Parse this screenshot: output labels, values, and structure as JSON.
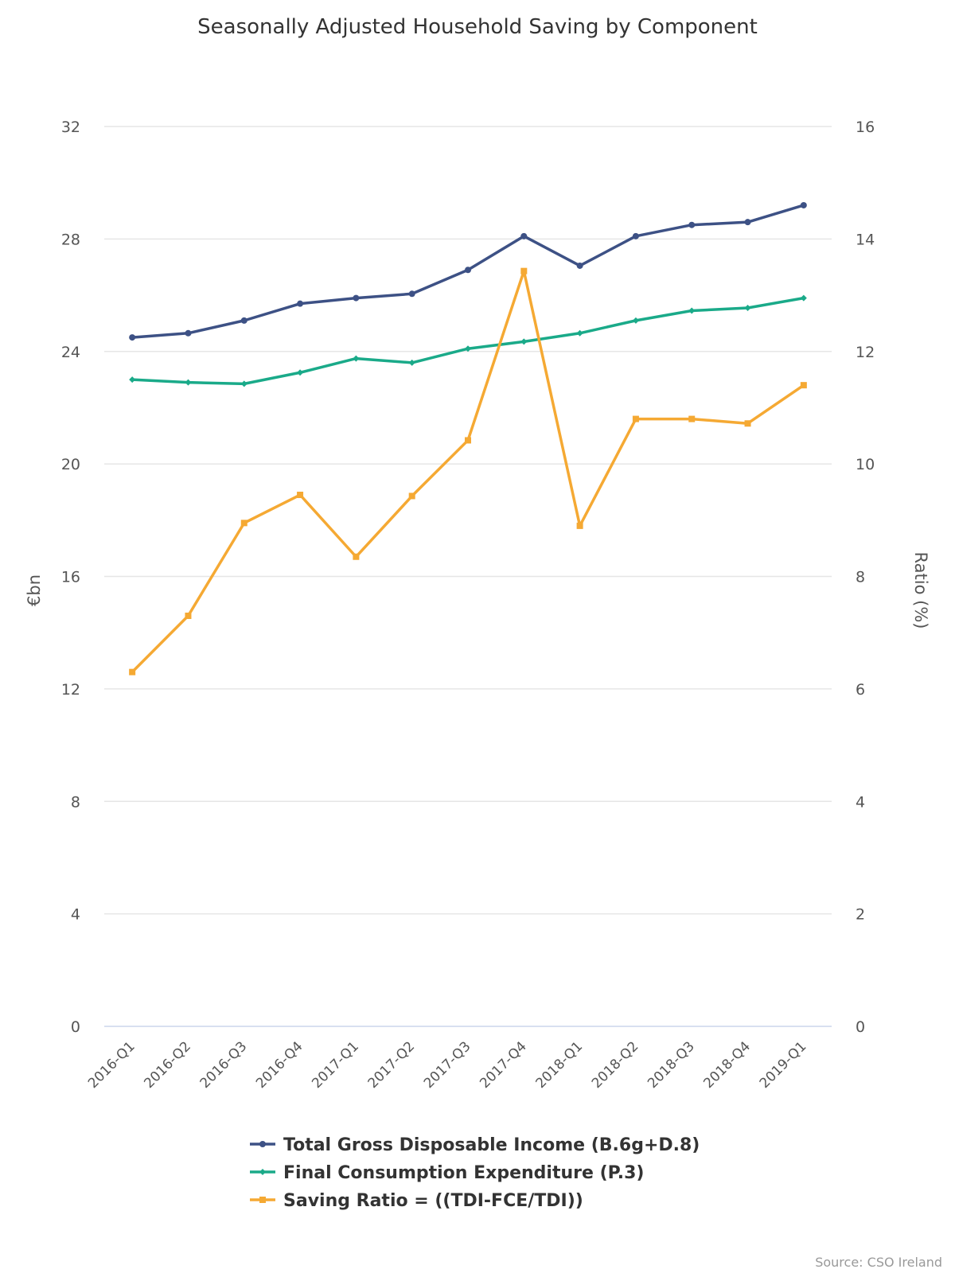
{
  "chart_data": {
    "type": "line",
    "title": "Seasonally Adjusted Household Saving by Component",
    "categories": [
      "2016-Q1",
      "2016-Q2",
      "2016-Q3",
      "2016-Q4",
      "2017-Q1",
      "2017-Q2",
      "2017-Q3",
      "2017-Q4",
      "2018-Q1",
      "2018-Q2",
      "2018-Q3",
      "2018-Q4",
      "2019-Q1"
    ],
    "y_left": {
      "label": "€bn",
      "min": 0,
      "max": 32,
      "ticks": [
        "0",
        "4",
        "8",
        "12",
        "16",
        "20",
        "24",
        "28",
        "32"
      ]
    },
    "y_right": {
      "label": "Ratio (%)",
      "min": 0,
      "max": 16,
      "ticks": [
        "0",
        "2",
        "4",
        "6",
        "8",
        "10",
        "12",
        "14",
        "16"
      ]
    },
    "grid": true,
    "legend": "bottom",
    "series": [
      {
        "name": "Total Gross Disposable Income (B.6g+D.8)",
        "axis": "left",
        "color": "#3d5185",
        "marker": "circle",
        "values": [
          24.5,
          24.65,
          25.1,
          25.7,
          25.9,
          26.05,
          26.9,
          28.1,
          27.05,
          28.1,
          28.5,
          28.6,
          29.2
        ]
      },
      {
        "name": "Final Consumption Expenditure (P.3)",
        "axis": "left",
        "color": "#1aaa89",
        "marker": "diamond",
        "values": [
          23.0,
          22.9,
          22.85,
          23.25,
          23.75,
          23.6,
          24.1,
          24.35,
          24.65,
          25.1,
          25.45,
          25.55,
          25.9
        ]
      },
      {
        "name": "Saving Ratio = ((TDI-FCE/TDI))",
        "axis": "right",
        "color": "#f5a933",
        "marker": "square",
        "values": [
          6.3,
          7.3,
          8.95,
          9.45,
          8.35,
          9.43,
          10.42,
          13.43,
          8.9,
          10.8,
          10.8,
          10.72,
          11.4
        ]
      }
    ],
    "source": "Source: CSO Ireland"
  }
}
